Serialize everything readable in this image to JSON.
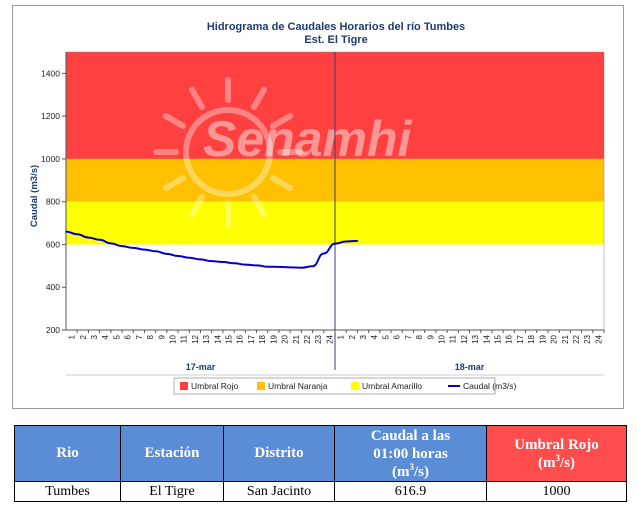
{
  "chart_data": {
    "type": "line",
    "title": "Hidrograma de Caudales Horarios del río Tumbes",
    "subtitle": "Est. El Tigre",
    "ylabel": "Caudal  (m3/s)",
    "xlabel": "",
    "ylim": [
      200,
      1500
    ],
    "yticks": [
      200,
      400,
      600,
      800,
      1000,
      1200,
      1400
    ],
    "x_hours_per_day": 24,
    "days": [
      "17-mar",
      "18-mar"
    ],
    "x_tick_labels": [
      "1",
      "2",
      "3",
      "4",
      "5",
      "6",
      "7",
      "8",
      "9",
      "10",
      "11",
      "12",
      "13",
      "14",
      "15",
      "16",
      "17",
      "18",
      "19",
      "20",
      "21",
      "22",
      "23",
      "24"
    ],
    "bands": [
      {
        "name": "Umbral Rojo",
        "from": 1000,
        "to": 1500,
        "color": "#ff4040"
      },
      {
        "name": "Umbral Naranja",
        "from": 800,
        "to": 1000,
        "color": "#ffc000"
      },
      {
        "name": "Umbral Amarillo",
        "from": 600,
        "to": 800,
        "color": "#ffff00"
      }
    ],
    "series": [
      {
        "name": "Caudal (m3/s)",
        "color": "#0000cc",
        "x": [
          0,
          1,
          2,
          3,
          4,
          5,
          6,
          7,
          8,
          9,
          10,
          11,
          12,
          13,
          14,
          15,
          16,
          17,
          18,
          19,
          20,
          21,
          22,
          23,
          24,
          25,
          26
        ],
        "y": [
          660,
          648,
          632,
          622,
          605,
          592,
          584,
          576,
          568,
          556,
          546,
          538,
          530,
          522,
          518,
          512,
          506,
          502,
          496,
          495,
          493,
          491,
          498,
          558,
          604,
          614,
          617
        ]
      }
    ],
    "legend": {
      "position": "bottom",
      "items": [
        {
          "label": "Umbral Rojo",
          "color": "#ff4040",
          "kind": "box"
        },
        {
          "label": "Umbral Naranja",
          "color": "#ffc000",
          "kind": "box"
        },
        {
          "label": "Umbral Amarillo",
          "color": "#ffff00",
          "kind": "box"
        },
        {
          "label": "Caudal (m3/s)",
          "color": "#0000cc",
          "kind": "line"
        }
      ]
    },
    "grid": false
  },
  "watermark": {
    "text": "Senamhi"
  },
  "table": {
    "headers": {
      "rio": "Rio",
      "estacion": "Estación",
      "distrito": "Distrito",
      "caudal_line1": "Caudal a las",
      "caudal_line2": "01:00 horas",
      "caudal_line3": "(m",
      "caudal_sup": "3",
      "caudal_line3_end": "/s)",
      "umbral_line1": "Umbral Rojo",
      "umbral_line2": "(m",
      "umbral_sup": "3",
      "umbral_line2_end": "/s)"
    },
    "row": {
      "rio": "Tumbes",
      "estacion": "El Tigre",
      "distrito": "San Jacinto",
      "caudal": "616.9",
      "umbral": "1000"
    }
  }
}
